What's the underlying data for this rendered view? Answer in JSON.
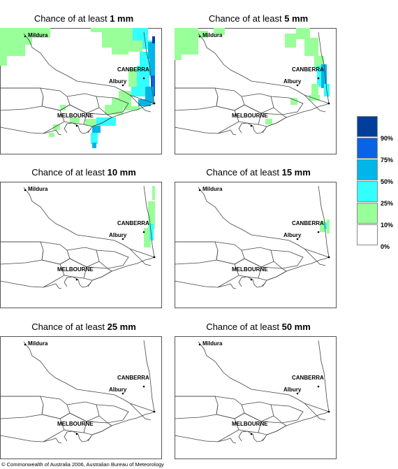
{
  "panels": [
    {
      "prefix": "Chance of at least ",
      "amount": "1 mm",
      "coverage": "high"
    },
    {
      "prefix": "Chance of at least ",
      "amount": "5 mm",
      "coverage": "mid"
    },
    {
      "prefix": "Chance of at least ",
      "amount": "10 mm",
      "coverage": "low"
    },
    {
      "prefix": "Chance of at least ",
      "amount": "15 mm",
      "coverage": "minimal"
    },
    {
      "prefix": "Chance of at least ",
      "amount": "25 mm",
      "coverage": "none"
    },
    {
      "prefix": "Chance of at least ",
      "amount": "50 mm",
      "coverage": "none"
    }
  ],
  "map_labels": {
    "mildura": "Mildura",
    "canberra": "CANBERRA",
    "albury": "Albury",
    "melbourne": "MELBOURNE"
  },
  "legend": [
    {
      "label": "90%",
      "color": "#003e9a"
    },
    {
      "label": "75%",
      "color": "#0a62e6"
    },
    {
      "label": "50%",
      "color": "#00b6e8"
    },
    {
      "label": "25%",
      "color": "#33ffff"
    },
    {
      "label": "10%",
      "color": "#99ff99"
    },
    {
      "label": "0%",
      "color": "#ffffff"
    }
  ],
  "footer": "© Commonwealth of Australia 2006, Australian Bureau of Meteorology"
}
